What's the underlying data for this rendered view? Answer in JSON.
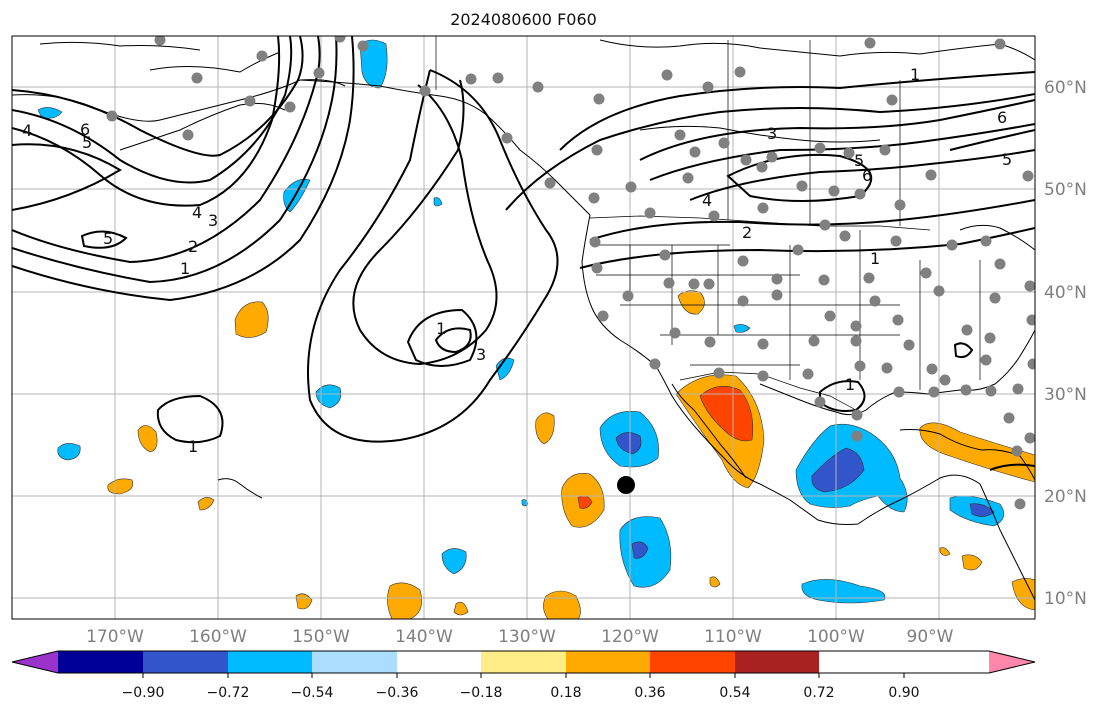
{
  "title": "2024080600 F060",
  "longitude_labels": [
    "170°W",
    "160°W",
    "150°W",
    "140°W",
    "130°W",
    "120°W",
    "110°W",
    "100°W",
    "90°W"
  ],
  "latitude_labels": [
    "60°N",
    "50°N",
    "40°N",
    "30°N",
    "20°N",
    "10°N"
  ],
  "colorbar": {
    "tick_labels": [
      "−0.90",
      "−0.72",
      "−0.54",
      "−0.36",
      "−0.18",
      "0.18",
      "0.36",
      "0.54",
      "0.72",
      "0.90"
    ],
    "colors": [
      "#9933cc",
      "#000099",
      "#3355cc",
      "#00bbff",
      "#aaddff",
      "#ffffff",
      "#ffee88",
      "#ffaa00",
      "#ff4400",
      "#aa2222",
      "#ff88aa"
    ]
  },
  "contour_labels": [
    "6",
    "5",
    "4",
    "3",
    "2",
    "1",
    "5",
    "4",
    "3",
    "1",
    "3",
    "6",
    "5",
    "4",
    "2",
    "1",
    "1",
    "1",
    "6",
    "5",
    "1"
  ],
  "marker": {
    "lon": -120,
    "lat": 21
  }
}
